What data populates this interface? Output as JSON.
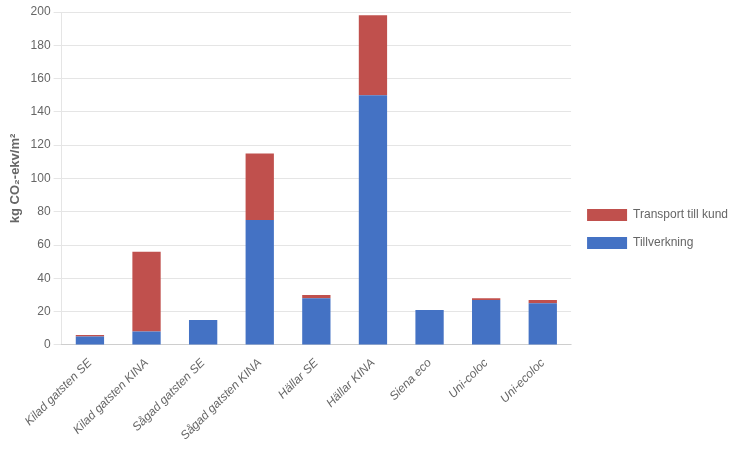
{
  "chart_data": {
    "type": "bar",
    "stacked": true,
    "categories": [
      "Kilad gatsten SE",
      "Kilad gatsten KINA",
      "Sågad gatsten SE",
      "Sågad gatsten KINA",
      "Hällar SE",
      "Hällar KINA",
      "Siena eco",
      "Uni-coloc",
      "Uni-ecoloc"
    ],
    "series": [
      {
        "name": "Tillverkning",
        "color": "#4472C4",
        "values": [
          5,
          8,
          15,
          75,
          28,
          150,
          21,
          27,
          25
        ]
      },
      {
        "name": "Transport till kund",
        "color": "#C0504D",
        "values": [
          1,
          48,
          0,
          40,
          2,
          48,
          0,
          1,
          2
        ]
      }
    ],
    "ylabel": "kg CO₂-ekv/m²",
    "ylim": [
      0,
      200
    ],
    "yticks": [
      0,
      20,
      40,
      60,
      80,
      100,
      120,
      140,
      160,
      180,
      200
    ],
    "grid": true,
    "legend": "right"
  }
}
